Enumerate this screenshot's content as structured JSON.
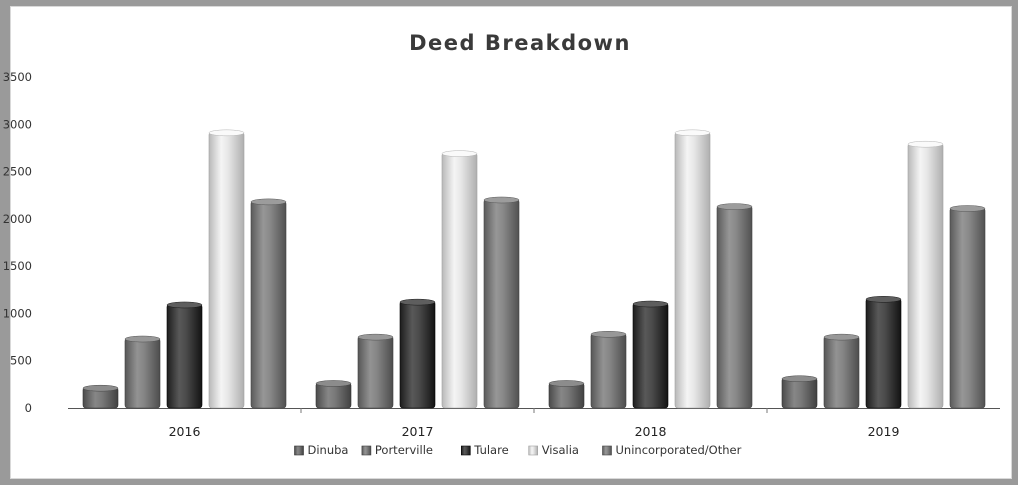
{
  "chart_data": {
    "type": "bar",
    "title": "Deed Breakdown",
    "xlabel": "",
    "ylabel": "",
    "ylim": [
      0,
      3500
    ],
    "yticks": [
      0,
      500,
      1000,
      1500,
      2000,
      2500,
      3000,
      3500
    ],
    "categories": [
      "2016",
      "2017",
      "2018",
      "2019"
    ],
    "series": [
      {
        "name": "Dinuba",
        "values": [
          220,
          270,
          270,
          320
        ],
        "color": "#6e6e6e"
      },
      {
        "name": "Porterville",
        "values": [
          740,
          760,
          790,
          760
        ],
        "color": "#7a7a7a"
      },
      {
        "name": "Tulare",
        "values": [
          1100,
          1130,
          1110,
          1160
        ],
        "color": "#404040"
      },
      {
        "name": "Visalia",
        "values": [
          2920,
          2700,
          2920,
          2800
        ],
        "color": "#dcdcdc"
      },
      {
        "name": "Unincorporated/Other",
        "values": [
          2190,
          2210,
          2140,
          2120
        ],
        "color": "#7e7e7e"
      }
    ],
    "grid": false,
    "legend": "bottom"
  }
}
